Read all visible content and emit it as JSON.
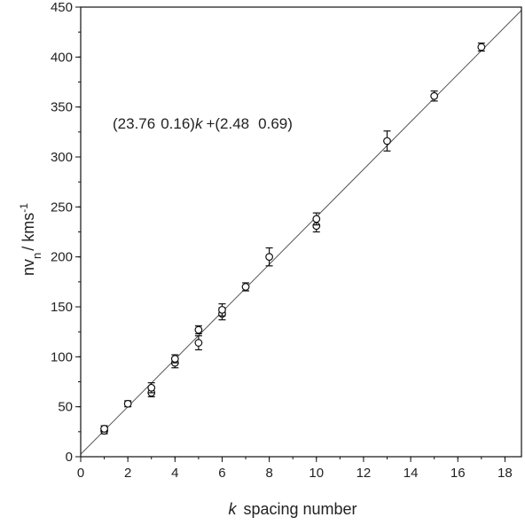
{
  "chart_data": {
    "type": "scatter",
    "title": "",
    "xlabel_italic": "k",
    "xlabel_text": "spacing number",
    "ylabel_main": "nv",
    "ylabel_sub": "n",
    "ylabel_units": "/ kms",
    "ylabel_sup": "-1",
    "xlim": [
      0,
      18.7
    ],
    "ylim": [
      0,
      450
    ],
    "x_ticks": [
      0,
      2,
      4,
      6,
      8,
      10,
      12,
      14,
      16,
      18
    ],
    "y_ticks": [
      0,
      50,
      100,
      150,
      200,
      250,
      300,
      350,
      400,
      450
    ],
    "x_minor_step": 1,
    "y_minor_step": 25,
    "grid": false,
    "legend": "none",
    "annotation": {
      "part1": "(23.76",
      "part2": "0.16)",
      "part3": "k",
      "part4": "+(2.48",
      "part5": "0.69)"
    },
    "fit_line": {
      "slope": 23.76,
      "intercept": 2.48
    },
    "marker": "open-circle",
    "series": [
      {
        "points": [
          {
            "x": 1,
            "y": 26,
            "err": 3
          },
          {
            "x": 1,
            "y": 28,
            "err": 3
          },
          {
            "x": 2,
            "y": 53,
            "err": 3
          },
          {
            "x": 3,
            "y": 64,
            "err": 4
          },
          {
            "x": 3,
            "y": 69,
            "err": 5
          },
          {
            "x": 4,
            "y": 94,
            "err": 5
          },
          {
            "x": 4,
            "y": 98,
            "err": 4
          },
          {
            "x": 5,
            "y": 114,
            "err": 7
          },
          {
            "x": 5,
            "y": 127,
            "err": 4
          },
          {
            "x": 6,
            "y": 143,
            "err": 6
          },
          {
            "x": 6,
            "y": 147,
            "err": 6
          },
          {
            "x": 7,
            "y": 170,
            "err": 4
          },
          {
            "x": 8,
            "y": 200,
            "err": 9
          },
          {
            "x": 10,
            "y": 231,
            "err": 6
          },
          {
            "x": 10,
            "y": 238,
            "err": 6
          },
          {
            "x": 13,
            "y": 316,
            "err": 10
          },
          {
            "x": 15,
            "y": 361,
            "err": 5
          },
          {
            "x": 17,
            "y": 410,
            "err": 4
          }
        ]
      }
    ]
  }
}
